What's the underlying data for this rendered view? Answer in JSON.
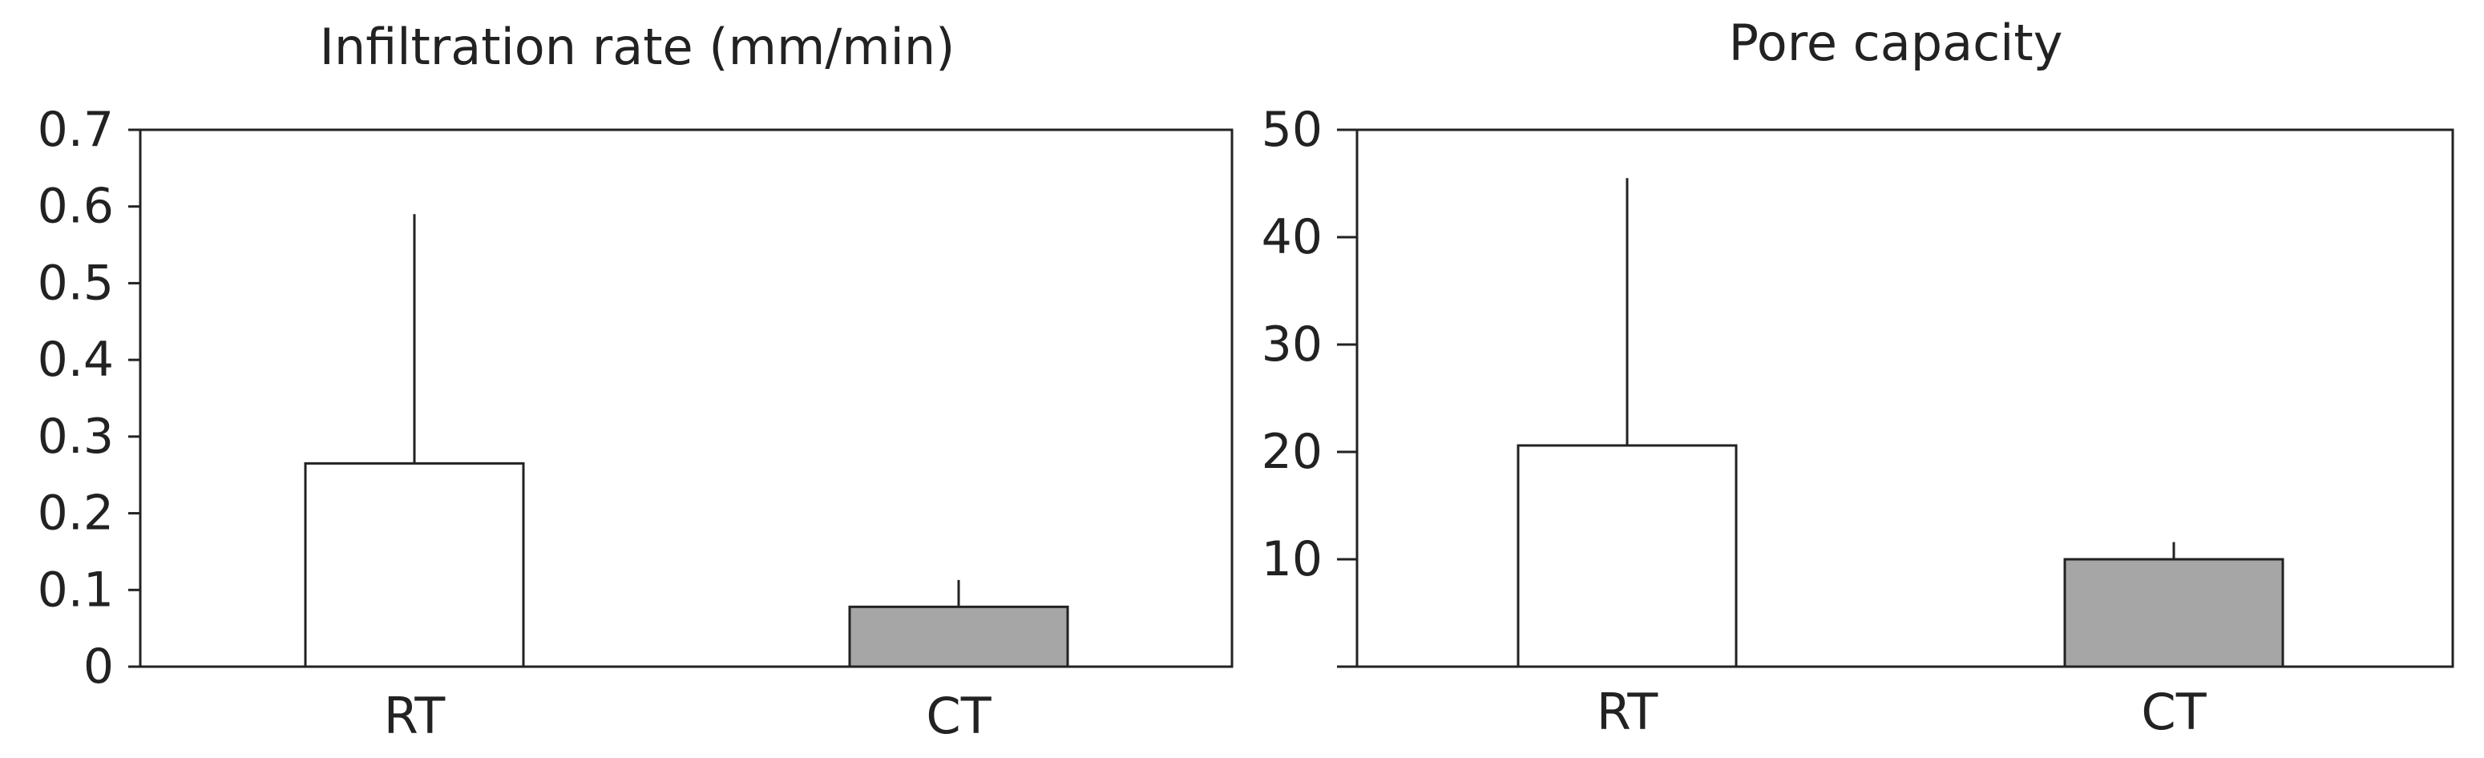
{
  "chart_data": [
    {
      "type": "bar",
      "title": "Infiltration rate (mm/min)",
      "categories": [
        "RT",
        "CT"
      ],
      "values": [
        0.265,
        0.078
      ],
      "error_upper": [
        0.59,
        0.113
      ],
      "ylim": [
        0,
        0.7
      ],
      "yticks": [
        0,
        0.1,
        0.2,
        0.3,
        0.4,
        0.5,
        0.6,
        0.7
      ],
      "ytick_labels": [
        "0",
        "0.1",
        "0.2",
        "0.3",
        "0.4",
        "0.5",
        "0.6",
        "0.7"
      ],
      "bar_colors": [
        "#ffffff",
        "#a6a6a6"
      ],
      "grid": false
    },
    {
      "type": "bar",
      "title": "Pore capacity",
      "categories": [
        "RT",
        "CT"
      ],
      "values": [
        20.6,
        10.0
      ],
      "error_upper": [
        45.5,
        11.6
      ],
      "ylim": [
        0,
        50
      ],
      "yticks": [
        10,
        20,
        30,
        40,
        50
      ],
      "ytick_labels": [
        "10",
        "20",
        "30",
        "40",
        "50"
      ],
      "bar_colors": [
        "#ffffff",
        "#a6a6a6"
      ],
      "grid": false
    }
  ]
}
